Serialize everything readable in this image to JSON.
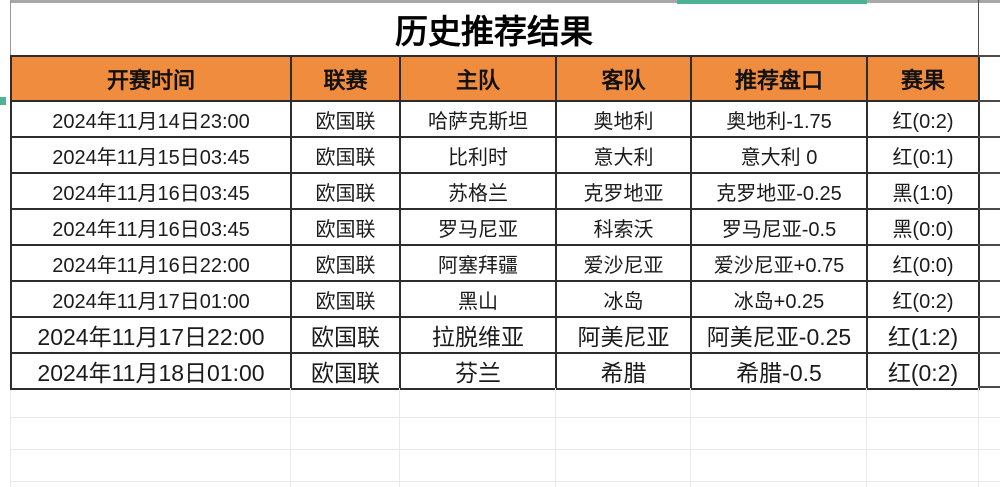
{
  "title": "历史推荐结果",
  "table": {
    "headers": [
      "开赛时间",
      "联赛",
      "主队",
      "客队",
      "推荐盘口",
      "赛果"
    ],
    "rows": [
      {
        "time": "2024年11月14日23:00",
        "league": "欧国联",
        "home": "哈萨克斯坦",
        "away": "奥地利",
        "handicap": "奥地利-1.75",
        "result": "红(0:2)",
        "result_color": "red"
      },
      {
        "time": "2024年11月15日03:45",
        "league": "欧国联",
        "home": "比利时",
        "away": "意大利",
        "handicap": "意大利 0",
        "result": "红(0:1)",
        "result_color": "red"
      },
      {
        "time": "2024年11月16日03:45",
        "league": "欧国联",
        "home": "苏格兰",
        "away": "克罗地亚",
        "handicap": "克罗地亚-0.25",
        "result": "黑(1:0)",
        "result_color": "black"
      },
      {
        "time": "2024年11月16日03:45",
        "league": "欧国联",
        "home": "罗马尼亚",
        "away": "科索沃",
        "handicap": "罗马尼亚-0.5",
        "result": "黑(0:0)",
        "result_color": "black"
      },
      {
        "time": "2024年11月16日22:00",
        "league": "欧国联",
        "home": "阿塞拜疆",
        "away": "爱沙尼亚",
        "handicap": "爱沙尼亚+0.75",
        "result": "红(0:0)",
        "result_color": "red"
      },
      {
        "time": "2024年11月17日01:00",
        "league": "欧国联",
        "home": "黑山",
        "away": "冰岛",
        "handicap": "冰岛+0.25",
        "result": "红(0:2)",
        "result_color": "red"
      },
      {
        "time": "2024年11月17日22:00",
        "league": "欧国联",
        "home": "拉脱维亚",
        "away": "阿美尼亚",
        "handicap": "阿美尼亚-0.25",
        "result": "红(1:2)",
        "result_color": "red"
      },
      {
        "time": "2024年11月18日01:00",
        "league": "欧国联",
        "home": "芬兰",
        "away": "希腊",
        "handicap": "希腊-0.5",
        "result": "红(0:2)",
        "result_color": "red"
      }
    ]
  },
  "colors": {
    "header_bg": "#F08C3E",
    "result_red": "#BD352E",
    "result_black": "#1C1C1C",
    "selection_teal": "#4DB396",
    "border": "#2D2D2D"
  }
}
